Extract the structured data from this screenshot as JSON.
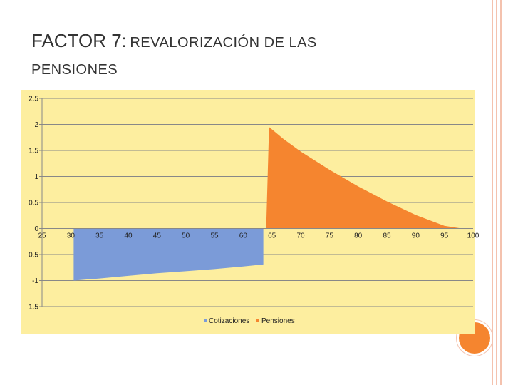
{
  "slide": {
    "title_part1": "FACTOR 7:",
    "title_part2": "REVALORIZACIÓN DE LAS",
    "title_part3": "PENSIONES"
  },
  "colors": {
    "plot_background": "#fdee9f",
    "cotizaciones": "#7b9bd8",
    "pensiones": "#f5852f",
    "gridline": "#888888",
    "accent": "#f4c2ae"
  },
  "chart_data": {
    "type": "area",
    "title": "",
    "xlabel": "",
    "ylabel": "",
    "ylim": [
      -1.5,
      2.5
    ],
    "y_ticks": [
      "-1.5",
      "-1",
      "-0.5",
      "0",
      "0.5",
      "1",
      "1.5",
      "2",
      "2.5"
    ],
    "x_ticks": [
      "25",
      "30",
      "35",
      "40",
      "45",
      "50",
      "55",
      "60",
      "65",
      "70",
      "75",
      "80",
      "85",
      "90",
      "95",
      "100"
    ],
    "grid": true,
    "legend": "bottom",
    "series": [
      {
        "name": "Cotizaciones",
        "x": [
          30.5,
          30.5,
          35,
          40,
          45,
          50,
          55,
          60,
          63.5,
          63.5
        ],
        "y": [
          0,
          -1.0,
          -0.96,
          -0.91,
          -0.86,
          -0.82,
          -0.78,
          -0.73,
          -0.69,
          0
        ]
      },
      {
        "name": "Pensiones",
        "x": [
          64,
          64.5,
          67,
          70,
          75,
          80,
          85,
          90,
          95,
          98
        ],
        "y": [
          0,
          1.95,
          1.72,
          1.48,
          1.13,
          0.81,
          0.52,
          0.26,
          0.05,
          0
        ]
      }
    ]
  }
}
